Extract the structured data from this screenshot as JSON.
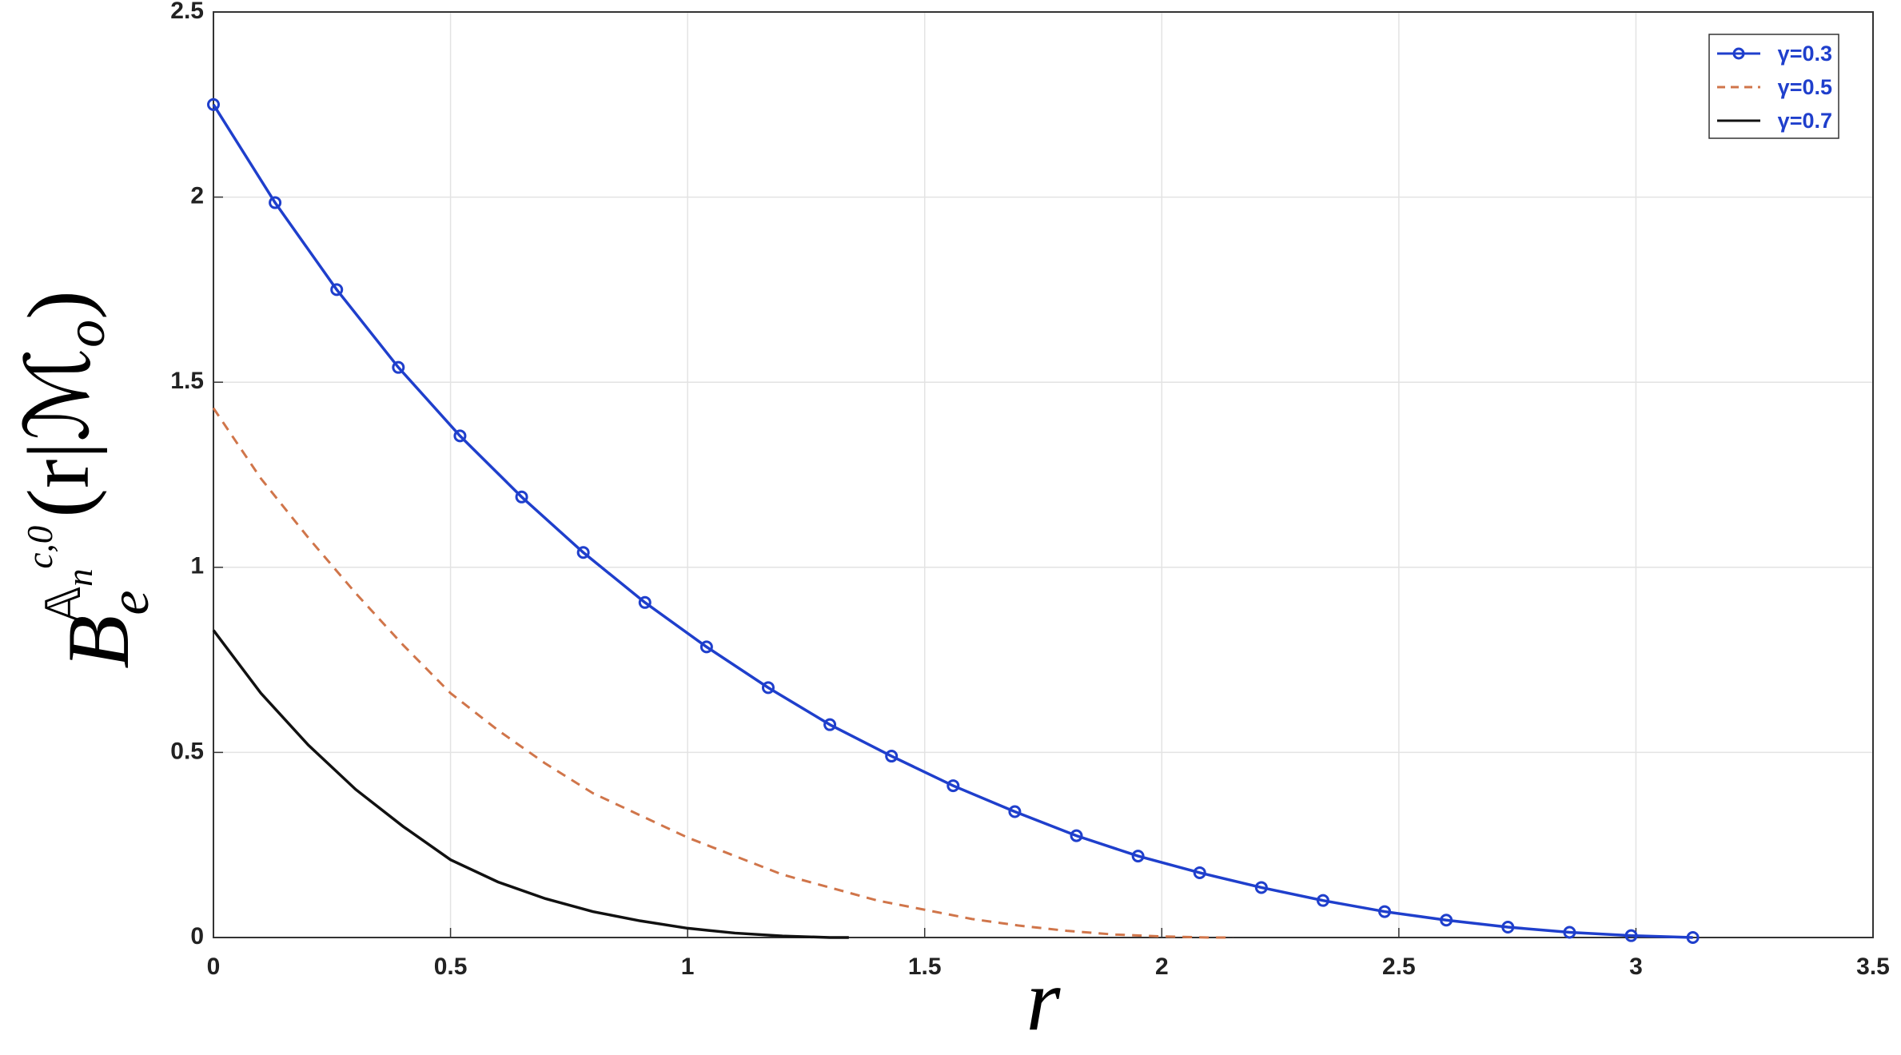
{
  "chart_data": {
    "type": "line",
    "xlabel": "r",
    "ylabel": {
      "base": "B",
      "sub": "e",
      "sup": "𝔸",
      "supsub": "n",
      "supsup": "c,0",
      "arg": "(r|ℳ",
      "argsub": "o",
      "close": ")"
    },
    "xlim": [
      0,
      3.5
    ],
    "xticks": [
      0,
      0.5,
      1,
      1.5,
      2,
      2.5,
      3,
      3.5
    ],
    "ylim": [
      0,
      2.5
    ],
    "yticks": [
      0,
      0.5,
      1,
      1.5,
      2,
      2.5
    ],
    "grid": true,
    "legend": "top-right",
    "series": [
      {
        "name": "γ=0.3",
        "color": "#1f3fcc",
        "style": "solid",
        "marker": "circle",
        "x": [
          0,
          0.13,
          0.26,
          0.39,
          0.52,
          0.65,
          0.78,
          0.91,
          1.04,
          1.17,
          1.3,
          1.43,
          1.56,
          1.69,
          1.82,
          1.95,
          2.08,
          2.21,
          2.34,
          2.47,
          2.6,
          2.73,
          2.86,
          2.99,
          3.12
        ],
        "values": [
          2.25,
          1.985,
          1.75,
          1.54,
          1.355,
          1.19,
          1.04,
          0.905,
          0.785,
          0.675,
          0.575,
          0.49,
          0.41,
          0.34,
          0.275,
          0.22,
          0.175,
          0.135,
          0.1,
          0.07,
          0.047,
          0.028,
          0.014,
          0.005,
          0
        ]
      },
      {
        "name": "γ=0.5",
        "color": "#d0754a",
        "style": "dashed",
        "x": [
          0,
          0.1,
          0.2,
          0.3,
          0.4,
          0.5,
          0.6,
          0.7,
          0.8,
          0.9,
          1.0,
          1.1,
          1.2,
          1.3,
          1.4,
          1.5,
          1.6,
          1.7,
          1.8,
          1.9,
          2.0,
          2.1,
          2.15
        ],
        "values": [
          1.43,
          1.24,
          1.08,
          0.93,
          0.79,
          0.66,
          0.56,
          0.47,
          0.39,
          0.33,
          0.27,
          0.22,
          0.17,
          0.135,
          0.1,
          0.075,
          0.05,
          0.032,
          0.018,
          0.008,
          0.003,
          0,
          0
        ]
      },
      {
        "name": "γ=0.7",
        "color": "#111111",
        "style": "solid",
        "x": [
          0,
          0.1,
          0.2,
          0.3,
          0.4,
          0.5,
          0.6,
          0.7,
          0.8,
          0.9,
          1.0,
          1.1,
          1.2,
          1.3,
          1.34
        ],
        "values": [
          0.83,
          0.66,
          0.52,
          0.4,
          0.3,
          0.21,
          0.15,
          0.105,
          0.07,
          0.045,
          0.025,
          0.012,
          0.004,
          0,
          0
        ]
      }
    ]
  }
}
